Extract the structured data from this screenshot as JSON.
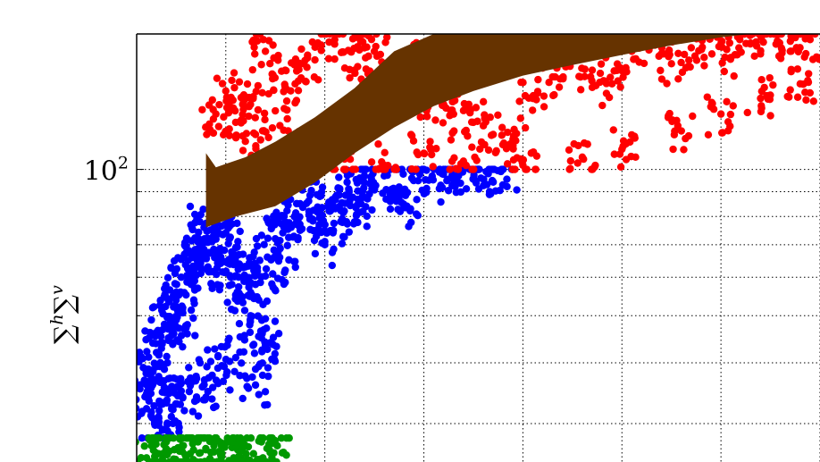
{
  "chart_data": {
    "type": "scatter",
    "title": "",
    "xlabel": "",
    "ylabel": {
      "sym1": "∑",
      "sup1": "h",
      "sym2": "∑",
      "sup2": "v"
    },
    "y_scale": "log",
    "x_range_visible": [
      1.1,
      8.0
    ],
    "y_range_visible": [
      25,
      190
    ],
    "grid": true,
    "grid_style": "dotted",
    "yticks": [
      {
        "value": 100,
        "base": "10",
        "exp": "2"
      }
    ],
    "series": [
      {
        "color": "#0000ff",
        "y_range": [
          28,
          100
        ],
        "points": [
          [
            1.2,
            34
          ],
          [
            1.22,
            38
          ],
          [
            1.26,
            36
          ],
          [
            1.3,
            42
          ],
          [
            1.34,
            40
          ],
          [
            1.38,
            48
          ],
          [
            1.42,
            45
          ],
          [
            1.47,
            55
          ],
          [
            1.5,
            52
          ],
          [
            1.55,
            60
          ],
          [
            1.58,
            47
          ],
          [
            1.62,
            65
          ],
          [
            1.65,
            58
          ],
          [
            1.7,
            72
          ],
          [
            1.74,
            68
          ],
          [
            1.78,
            76
          ],
          [
            1.82,
            63
          ],
          [
            1.86,
            71
          ],
          [
            1.9,
            78
          ],
          [
            1.95,
            66
          ],
          [
            2.0,
            74
          ],
          [
            2.05,
            60
          ],
          [
            2.1,
            69
          ],
          [
            2.15,
            55
          ],
          [
            2.2,
            63
          ],
          [
            2.25,
            50
          ],
          [
            2.3,
            58
          ],
          [
            2.36,
            45
          ],
          [
            2.42,
            66
          ],
          [
            2.5,
            72
          ],
          [
            2.58,
            80
          ],
          [
            2.66,
            76
          ],
          [
            2.75,
            85
          ],
          [
            2.85,
            79
          ],
          [
            2.95,
            88
          ],
          [
            3.05,
            82
          ],
          [
            3.15,
            91
          ],
          [
            3.25,
            86
          ],
          [
            3.35,
            95
          ],
          [
            3.45,
            89
          ],
          [
            3.6,
            97
          ],
          [
            3.75,
            92
          ],
          [
            3.9,
            99
          ],
          [
            4.05,
            95
          ],
          [
            4.2,
            100
          ],
          [
            4.35,
            97
          ],
          [
            4.5,
            100
          ],
          [
            4.65,
            98
          ],
          [
            4.8,
            100
          ],
          [
            1.28,
            30
          ],
          [
            1.35,
            33
          ],
          [
            1.45,
            31
          ],
          [
            1.55,
            35
          ],
          [
            1.68,
            37
          ],
          [
            1.8,
            34
          ],
          [
            1.92,
            39
          ],
          [
            2.1,
            41
          ],
          [
            2.3,
            36
          ],
          [
            2.45,
            44
          ],
          [
            2.6,
            62
          ],
          [
            3.0,
            70
          ],
          [
            3.3,
            78
          ],
          [
            3.8,
            84
          ]
        ]
      },
      {
        "color": "#ff0000",
        "y_range": [
          100,
          190
        ],
        "points": [
          [
            1.9,
            130
          ],
          [
            2.0,
            145
          ],
          [
            2.1,
            125
          ],
          [
            2.2,
            140
          ],
          [
            2.3,
            118
          ],
          [
            2.5,
            132
          ],
          [
            2.7,
            150
          ],
          [
            2.9,
            168
          ],
          [
            3.1,
            185
          ],
          [
            3.3,
            160
          ],
          [
            3.5,
            175
          ],
          [
            3.7,
            150
          ],
          [
            3.9,
            165
          ],
          [
            4.1,
            140
          ],
          [
            4.3,
            130
          ],
          [
            4.5,
            125
          ],
          [
            4.7,
            118
          ],
          [
            4.9,
            112
          ],
          [
            5.1,
            140
          ],
          [
            5.3,
            155
          ],
          [
            5.5,
            170
          ],
          [
            5.7,
            160
          ],
          [
            5.9,
            150
          ],
          [
            6.1,
            175
          ],
          [
            6.3,
            185
          ],
          [
            6.5,
            165
          ],
          [
            6.7,
            178
          ],
          [
            6.9,
            188
          ],
          [
            7.1,
            170
          ],
          [
            7.3,
            182
          ],
          [
            7.5,
            190
          ],
          [
            7.7,
            175
          ],
          [
            7.9,
            185
          ],
          [
            2.8,
            110
          ],
          [
            3.2,
            105
          ],
          [
            3.6,
            102
          ],
          [
            4.0,
            108
          ],
          [
            4.4,
            104
          ],
          [
            5.0,
            102
          ],
          [
            5.6,
            106
          ],
          [
            6.0,
            110
          ],
          [
            6.6,
            120
          ],
          [
            7.0,
            130
          ],
          [
            7.4,
            140
          ],
          [
            7.8,
            150
          ],
          [
            3.4,
            190
          ],
          [
            2.4,
            175
          ],
          [
            2.6,
            160
          ]
        ]
      },
      {
        "color": "#009900",
        "y_range": [
          25,
          28
        ],
        "points": [
          [
            1.25,
            27
          ],
          [
            1.32,
            26
          ],
          [
            1.4,
            27.5
          ],
          [
            1.48,
            26.5
          ],
          [
            1.56,
            27
          ],
          [
            1.64,
            26
          ],
          [
            1.72,
            27.5
          ],
          [
            1.8,
            26.5
          ],
          [
            1.88,
            27
          ],
          [
            1.96,
            26
          ],
          [
            2.04,
            27.5
          ],
          [
            2.12,
            26.5
          ],
          [
            2.2,
            27
          ],
          [
            2.28,
            26
          ],
          [
            2.36,
            27.5
          ],
          [
            2.44,
            26.5
          ],
          [
            2.52,
            27
          ],
          [
            1.2,
            25.5
          ],
          [
            1.36,
            25.3
          ],
          [
            1.6,
            25.6
          ],
          [
            1.84,
            25.4
          ],
          [
            2.08,
            25.5
          ],
          [
            2.32,
            25.3
          ]
        ]
      }
    ],
    "band": {
      "color": "#663300",
      "upper": [
        [
          1.8,
          108
        ],
        [
          1.9,
          101
        ],
        [
          2.2,
          106
        ],
        [
          2.5,
          114
        ],
        [
          2.9,
          128
        ],
        [
          3.3,
          147
        ],
        [
          3.7,
          175
        ],
        [
          4.1,
          190
        ],
        [
          5.0,
          190
        ],
        [
          6.0,
          190
        ],
        [
          7.0,
          190
        ],
        [
          7.3,
          190
        ]
      ],
      "lower": [
        [
          1.8,
          76
        ],
        [
          2.1,
          80
        ],
        [
          2.5,
          84
        ],
        [
          2.9,
          94
        ],
        [
          3.3,
          108
        ],
        [
          3.7,
          122
        ],
        [
          4.1,
          135
        ],
        [
          4.5,
          145
        ],
        [
          5.0,
          156
        ],
        [
          5.5,
          164
        ],
        [
          6.0,
          172
        ],
        [
          6.5,
          180
        ],
        [
          7.0,
          187
        ],
        [
          7.3,
          190
        ]
      ]
    }
  }
}
